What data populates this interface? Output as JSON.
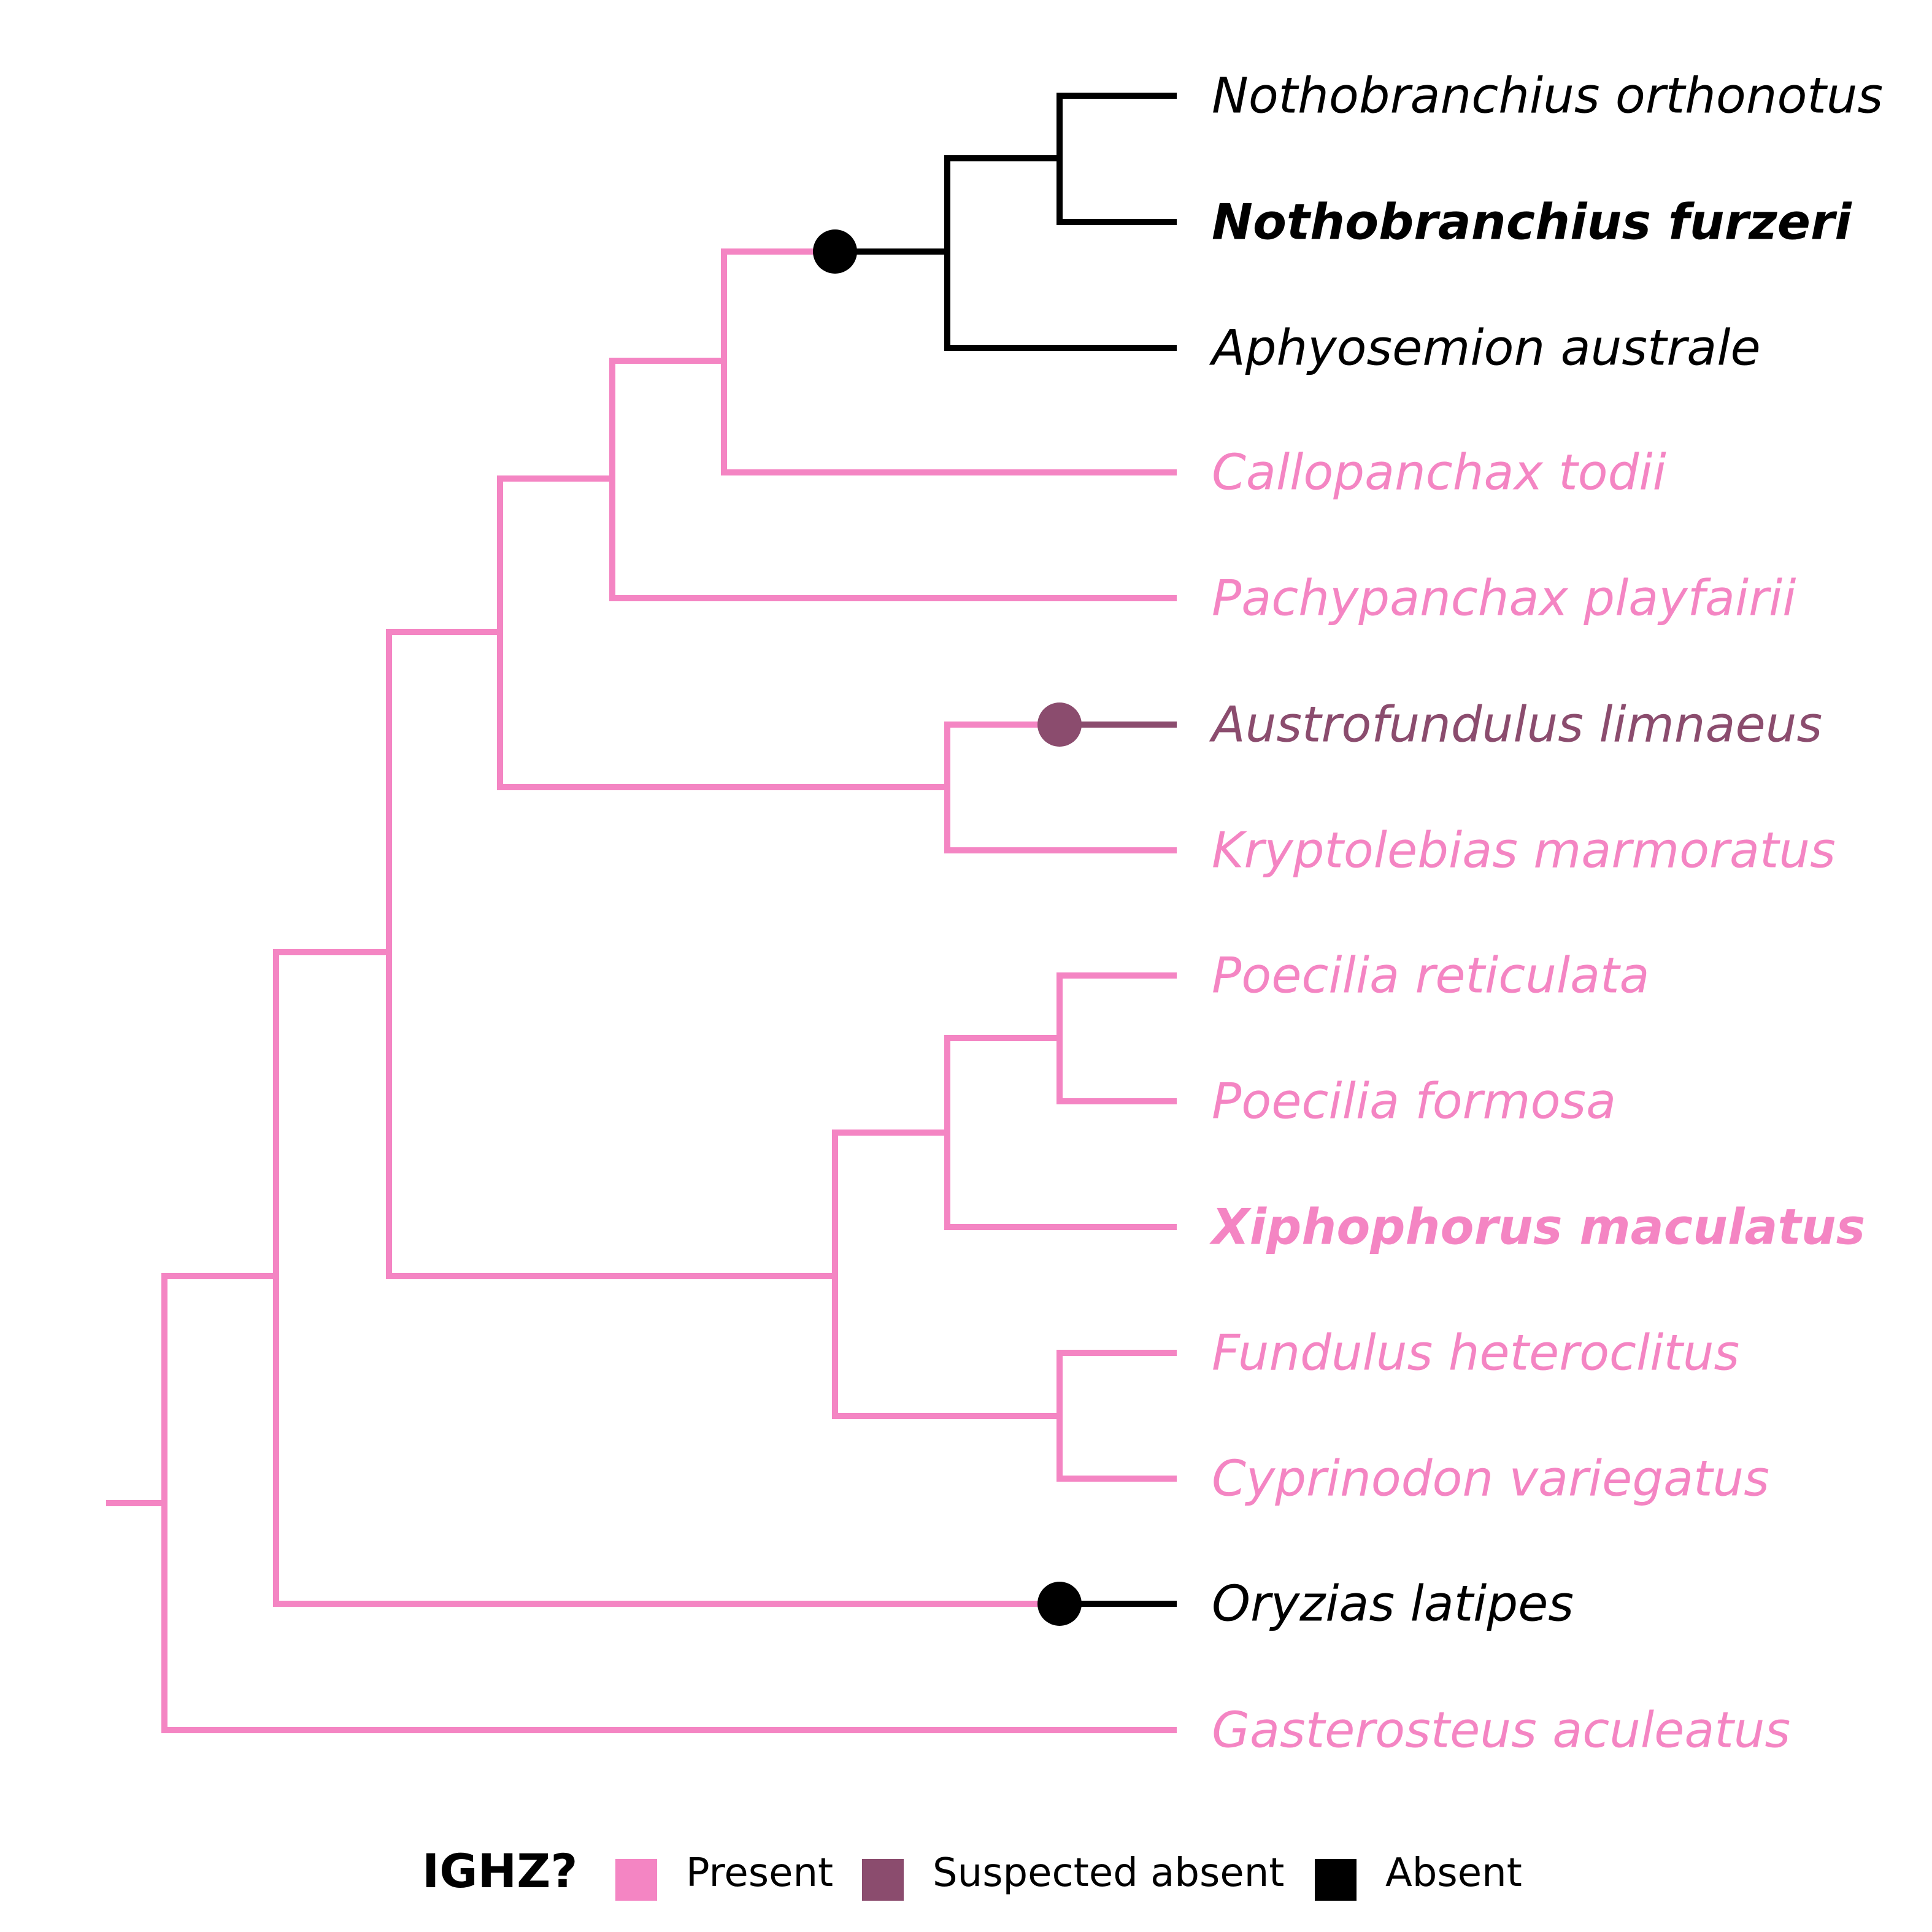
{
  "colors": {
    "present": "#F485C3",
    "suspected_absent": "#8B4C6E",
    "absent": "#000000"
  },
  "taxa": [
    {
      "name": "Nothobranchius orthonotus",
      "status": "absent",
      "bold": false
    },
    {
      "name": "Nothobranchius furzeri",
      "status": "absent",
      "bold": true
    },
    {
      "name": "Aphyosemion australe",
      "status": "absent",
      "bold": false
    },
    {
      "name": "Callopanchax todii",
      "status": "present",
      "bold": false
    },
    {
      "name": "Pachypanchax playfairii",
      "status": "present",
      "bold": false
    },
    {
      "name": "Austrofundulus limnaeus",
      "status": "suspected_absent",
      "bold": false
    },
    {
      "name": "Kryptolebias marmoratus",
      "status": "present",
      "bold": false
    },
    {
      "name": "Poecilia reticulata",
      "status": "present",
      "bold": false
    },
    {
      "name": "Poecilia formosa",
      "status": "present",
      "bold": false
    },
    {
      "name": "Xiphophorus maculatus",
      "status": "present",
      "bold": true
    },
    {
      "name": "Fundulus heteroclitus",
      "status": "present",
      "bold": false
    },
    {
      "name": "Cyprinodon variegatus",
      "status": "present",
      "bold": false
    },
    {
      "name": "Oryzias latipes",
      "status": "absent",
      "bold": false
    },
    {
      "name": "Gasterosteus aculeatus",
      "status": "present",
      "bold": false
    }
  ],
  "legend": {
    "title": "IGHZ?",
    "items": [
      {
        "label": "Present",
        "status": "present"
      },
      {
        "label": "Suspected absent",
        "status": "suspected_absent"
      },
      {
        "label": "Absent",
        "status": "absent"
      }
    ]
  }
}
